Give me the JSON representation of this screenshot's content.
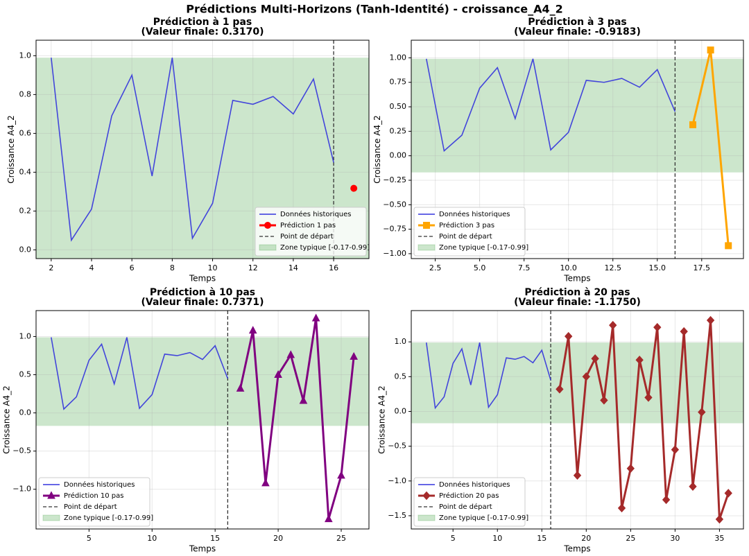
{
  "title": "Prédictions Multi-Horizons (Tanh-Identité) - croissance_A4_2",
  "chart_data": [
    {
      "type": "line",
      "title": "Prédiction à 1 pas",
      "subtitle": "(Valeur finale: 0.3170)",
      "x_label": "Temps",
      "y_label": "Croissance A4_2",
      "xlim": [
        1.25,
        17.75
      ],
      "ylim": [
        -0.045,
        1.08
      ],
      "xticks": [
        2,
        4,
        6,
        8,
        10,
        12,
        14,
        16
      ],
      "yticks": [
        {
          "value": 0,
          "label": "0.0"
        },
        0.2,
        0.4,
        0.6,
        0.8,
        {
          "value": 1,
          "label": "1.0"
        }
      ],
      "grid": true,
      "legend": "lower right",
      "band": {
        "name": "Zone typique [-0.17-0.99]",
        "range": [
          -0.17,
          0.99
        ],
        "color": "#008000"
      },
      "reference_line": {
        "name": "Point de départ",
        "x": 16,
        "color": "#333333"
      },
      "series": [
        {
          "name": "Données historiques",
          "color": "#3333dd",
          "x": [
            2,
            3,
            4,
            5,
            6,
            7,
            8,
            9,
            10,
            11,
            12,
            13,
            14,
            15,
            16
          ],
          "values": [
            0.99,
            0.05,
            0.21,
            0.69,
            0.9,
            0.38,
            0.99,
            0.06,
            0.24,
            0.77,
            0.75,
            0.79,
            0.7,
            0.88,
            0.45
          ]
        },
        {
          "name": "Prédiction 1 pas",
          "color": "#ff0000",
          "marker": "o",
          "x": [
            17
          ],
          "values": [
            0.317
          ]
        }
      ]
    },
    {
      "type": "line",
      "title": "Prédiction à 3 pas",
      "subtitle": "(Valeur finale: -0.9183)",
      "x_label": "Temps",
      "y_label": "Croissance A4_2",
      "xlim": [
        1.15,
        19.85
      ],
      "ylim": [
        -1.05,
        1.18
      ],
      "xticks": [
        2.5,
        {
          "value": 5,
          "label": "5.0"
        },
        7.5,
        {
          "value": 10,
          "label": "10.0"
        },
        12.5,
        {
          "value": 15,
          "label": "15.0"
        },
        17.5
      ],
      "yticks": [
        {
          "value": -1,
          "label": "−1.00"
        },
        {
          "value": -0.75,
          "label": "−0.75"
        },
        {
          "value": -0.5,
          "label": "−0.50"
        },
        {
          "value": -0.25,
          "label": "−0.25"
        },
        {
          "value": 0,
          "label": "0.00"
        },
        {
          "value": 0.25,
          "label": "0.25"
        },
        {
          "value": 0.5,
          "label": "0.50"
        },
        {
          "value": 0.75,
          "label": "0.75"
        },
        {
          "value": 1,
          "label": "1.00"
        }
      ],
      "grid": true,
      "legend": "lower left",
      "band": {
        "name": "Zone typique [-0.17-0.99]",
        "range": [
          -0.17,
          0.99
        ],
        "color": "#008000"
      },
      "reference_line": {
        "name": "Point de départ",
        "x": 16,
        "color": "#333333"
      },
      "series": [
        {
          "name": "Données historiques",
          "color": "#3333dd",
          "x": [
            2,
            3,
            4,
            5,
            6,
            7,
            8,
            9,
            10,
            11,
            12,
            13,
            14,
            15,
            16
          ],
          "values": [
            0.99,
            0.05,
            0.21,
            0.69,
            0.9,
            0.38,
            0.99,
            0.06,
            0.24,
            0.77,
            0.75,
            0.79,
            0.7,
            0.88,
            0.45
          ]
        },
        {
          "name": "Prédiction 3 pas",
          "color": "#ffa500",
          "marker": "s",
          "x": [
            17,
            18,
            19
          ],
          "values": [
            0.317,
            1.08,
            -0.9183
          ]
        }
      ]
    },
    {
      "type": "line",
      "title": "Prédiction à 10 pas",
      "subtitle": "(Valeur finale: 0.7371)",
      "x_label": "Temps",
      "y_label": "Croissance A4_2",
      "xlim": [
        0.8,
        27.2
      ],
      "ylim": [
        -1.52,
        1.34
      ],
      "xticks": [
        5,
        10,
        15,
        20,
        25
      ],
      "yticks": [
        {
          "value": -1,
          "label": "−1.0"
        },
        {
          "value": -0.5,
          "label": "−0.5"
        },
        {
          "value": 0,
          "label": "0.0"
        },
        0.5,
        {
          "value": 1,
          "label": "1.0"
        }
      ],
      "grid": true,
      "legend": "lower left",
      "band": {
        "name": "Zone typique [-0.17-0.99]",
        "range": [
          -0.17,
          0.99
        ],
        "color": "#008000"
      },
      "reference_line": {
        "name": "Point de départ",
        "x": 16,
        "color": "#333333"
      },
      "series": [
        {
          "name": "Données historiques",
          "color": "#3333dd",
          "x": [
            2,
            3,
            4,
            5,
            6,
            7,
            8,
            9,
            10,
            11,
            12,
            13,
            14,
            15,
            16
          ],
          "values": [
            0.99,
            0.05,
            0.21,
            0.69,
            0.9,
            0.38,
            0.99,
            0.06,
            0.24,
            0.77,
            0.75,
            0.79,
            0.7,
            0.88,
            0.45
          ]
        },
        {
          "name": "Prédiction 10 pas",
          "color": "#800080",
          "marker": "^",
          "x": [
            17,
            18,
            19,
            20,
            21,
            22,
            23,
            24,
            25,
            26
          ],
          "values": [
            0.32,
            1.08,
            -0.92,
            0.5,
            0.76,
            0.16,
            1.24,
            -1.39,
            -0.82,
            0.7371
          ]
        }
      ]
    },
    {
      "type": "line",
      "title": "Prédiction à 20 pas",
      "subtitle": "(Valeur finale: -1.1750)",
      "x_label": "Temps",
      "y_label": "Croissance A4_2",
      "xlim": [
        0.3,
        37.7
      ],
      "ylim": [
        -1.69,
        1.45
      ],
      "xticks": [
        5,
        10,
        15,
        20,
        25,
        30,
        35
      ],
      "yticks": [
        {
          "value": -1.5,
          "label": "−1.5"
        },
        {
          "value": -1,
          "label": "−1.0"
        },
        {
          "value": -0.5,
          "label": "−0.5"
        },
        {
          "value": 0,
          "label": "0.0"
        },
        0.5,
        {
          "value": 1,
          "label": "1.0"
        }
      ],
      "grid": true,
      "legend": "lower left",
      "band": {
        "name": "Zone typique [-0.17-0.99]",
        "range": [
          -0.17,
          0.99
        ],
        "color": "#008000"
      },
      "reference_line": {
        "name": "Point de départ",
        "x": 16,
        "color": "#333333"
      },
      "series": [
        {
          "name": "Données historiques",
          "color": "#3333dd",
          "x": [
            2,
            3,
            4,
            5,
            6,
            7,
            8,
            9,
            10,
            11,
            12,
            13,
            14,
            15,
            16
          ],
          "values": [
            0.99,
            0.05,
            0.21,
            0.69,
            0.9,
            0.38,
            0.99,
            0.06,
            0.24,
            0.77,
            0.75,
            0.79,
            0.7,
            0.88,
            0.45
          ]
        },
        {
          "name": "Prédiction 20 pas",
          "color": "#a52a2a",
          "marker": "D",
          "x": [
            17,
            18,
            19,
            20,
            21,
            22,
            23,
            24,
            25,
            26,
            27,
            28,
            29,
            30,
            31,
            32,
            33,
            34,
            35,
            36
          ],
          "values": [
            0.32,
            1.08,
            -0.92,
            0.5,
            0.76,
            0.16,
            1.24,
            -1.39,
            -0.82,
            0.74,
            0.2,
            1.21,
            -1.27,
            -0.55,
            1.15,
            -1.08,
            -0.01,
            1.31,
            -1.55,
            -1.175
          ]
        }
      ]
    }
  ]
}
